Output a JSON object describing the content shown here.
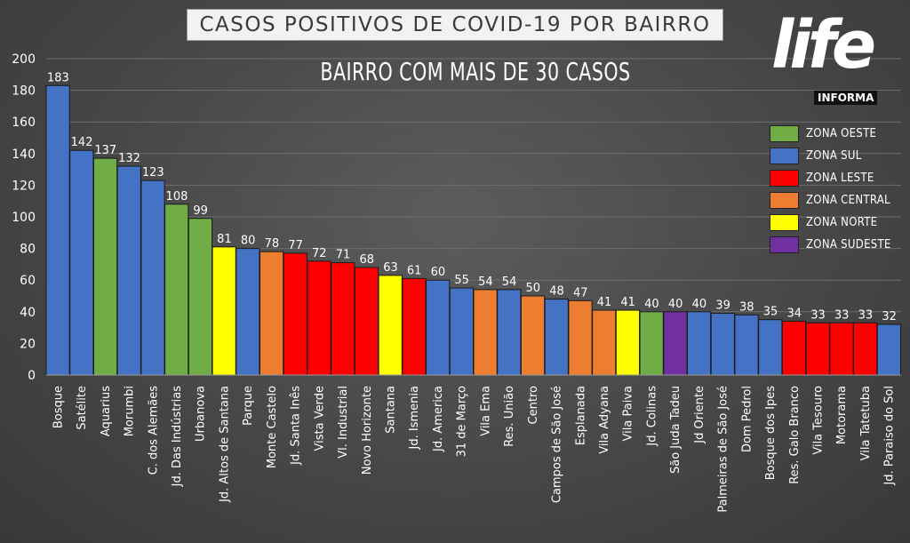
{
  "header": {
    "title": "CASOS POSITIVOS DE COVID-19 POR BAIRRO",
    "subtitle": "BAIRRO COM MAIS DE 30 CASOS"
  },
  "logo": {
    "text": "life",
    "subtext": "INFORMA"
  },
  "legend": [
    {
      "label": "ZONA OESTE",
      "color": "#70ad47"
    },
    {
      "label": "ZONA SUL",
      "color": "#4472c4"
    },
    {
      "label": "ZONA LESTE",
      "color": "#ff0000"
    },
    {
      "label": "ZONA CENTRAL",
      "color": "#ed7d31"
    },
    {
      "label": "ZONA NORTE",
      "color": "#ffff00"
    },
    {
      "label": "ZONA SUDESTE",
      "color": "#7030a0"
    }
  ],
  "chart_data": {
    "type": "bar",
    "title": "CASOS POSITIVOS DE COVID-19 POR BAIRRO",
    "subtitle": "BAIRRO COM MAIS DE 30 CASOS",
    "ylim": [
      0,
      200
    ],
    "yticks": [
      0,
      20,
      40,
      60,
      80,
      100,
      120,
      140,
      160,
      180,
      200
    ],
    "grid": true,
    "legend_position": "right",
    "categories": [
      "Bosque",
      "Satélite",
      "Aquarius",
      "Morumbi",
      "C. dos Alemães",
      "Jd. Das Indústrias",
      "Urbanova",
      "Jd. Altos de Santana",
      "Parque",
      "Monte Castelo",
      "Jd. Santa Inês",
      "Vista Verde",
      "Vl. Industrial",
      "Novo Horizonte",
      "Santana",
      "Jd. Ismenia",
      "Jd. America",
      "31 de Março",
      "Vila Ema",
      "Res. União",
      "Centro",
      "Campos de São José",
      "Esplanada",
      "Vila Adyana",
      "Vila Paiva",
      "Jd. Colinas",
      "São Juda Tadeu",
      "Jd Oriente",
      "Palmeiras de São José",
      "Dom Pedrol",
      "Bosque dos Ipes",
      "Res. Galo Branco",
      "Vila Tesouro",
      "Motorama",
      "Vila Tatetuba",
      "Jd. Paraiso do Sol"
    ],
    "values": [
      183,
      142,
      137,
      132,
      123,
      108,
      99,
      81,
      80,
      78,
      77,
      72,
      71,
      68,
      63,
      61,
      60,
      55,
      54,
      54,
      50,
      48,
      47,
      41,
      41,
      40,
      40,
      40,
      39,
      38,
      35,
      34,
      33,
      33,
      33,
      32
    ],
    "zones": [
      "ZONA SUL",
      "ZONA SUL",
      "ZONA OESTE",
      "ZONA SUL",
      "ZONA SUL",
      "ZONA OESTE",
      "ZONA OESTE",
      "ZONA NORTE",
      "ZONA SUL",
      "ZONA CENTRAL",
      "ZONA LESTE",
      "ZONA LESTE",
      "ZONA LESTE",
      "ZONA LESTE",
      "ZONA NORTE",
      "ZONA LESTE",
      "ZONA SUL",
      "ZONA SUL",
      "ZONA CENTRAL",
      "ZONA SUL",
      "ZONA CENTRAL",
      "ZONA SUL",
      "ZONA CENTRAL",
      "ZONA CENTRAL",
      "ZONA NORTE",
      "ZONA OESTE",
      "ZONA SUDESTE",
      "ZONA SUL",
      "ZONA SUL",
      "ZONA SUL",
      "ZONA SUL",
      "ZONA LESTE",
      "ZONA LESTE",
      "ZONA LESTE",
      "ZONA LESTE",
      "ZONA SUL"
    ]
  }
}
